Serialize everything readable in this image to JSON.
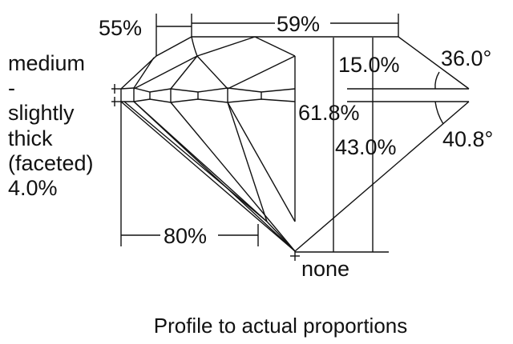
{
  "labels": {
    "crown_height_pct": "55%",
    "table_pct": "59%",
    "crown_depth": "15.0%",
    "crown_angle": "36.0°",
    "total_depth": "61.8%",
    "pavilion_depth": "43.0%",
    "pavilion_angle": "40.8°",
    "lower_half": "80%",
    "culet": "none",
    "girdle": [
      "medium",
      "-",
      "slightly",
      "thick",
      "(faceted)",
      "4.0%"
    ]
  },
  "caption": "Profile to actual proportions"
}
